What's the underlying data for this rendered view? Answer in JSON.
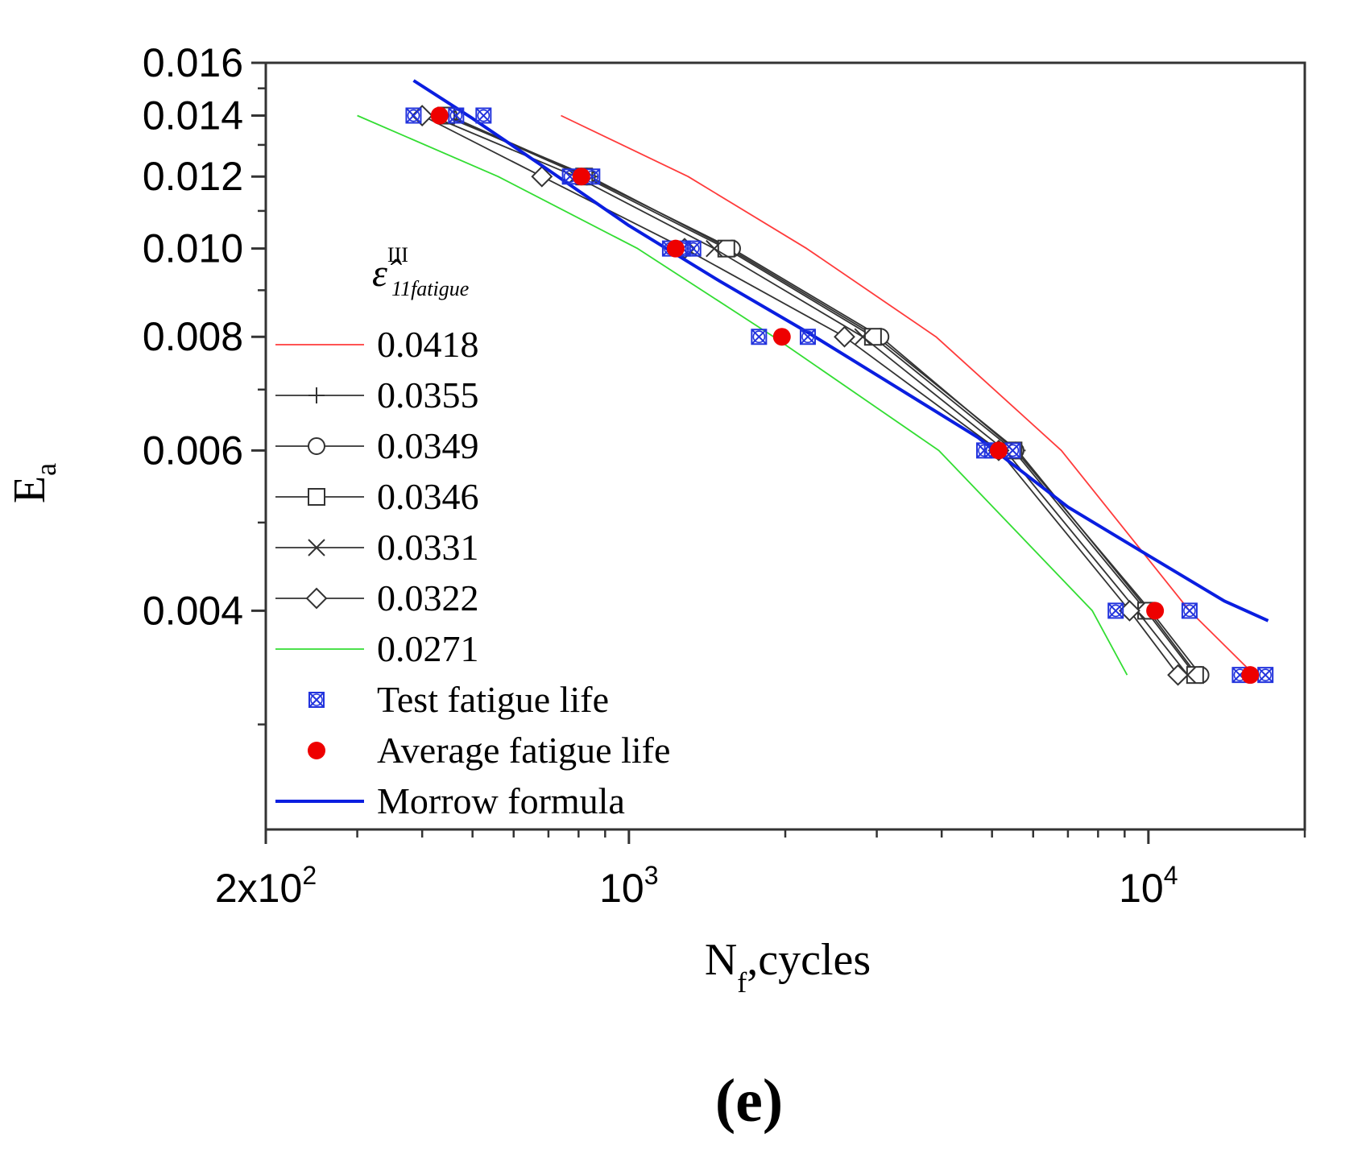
{
  "chart_data": {
    "type": "line",
    "title": "",
    "xlabel": "N",
    "xlabel_sub": "f",
    "xlabel_rest": ",cycles",
    "ylabel": "E",
    "ylabel_sub": "a",
    "x_scale": "log",
    "y_scale": "log",
    "xlim": [
      200,
      20000
    ],
    "ylim": [
      0.0023,
      0.016
    ],
    "x_ticks": [
      {
        "value": 200,
        "base": "2x10",
        "exp": "2"
      },
      {
        "value": 1000,
        "base": "10",
        "exp": "3"
      },
      {
        "value": 10000,
        "base": "10",
        "exp": "4"
      }
    ],
    "y_ticks": [
      {
        "value": 0.016,
        "label": "0.016"
      },
      {
        "value": 0.014,
        "label": "0.014"
      },
      {
        "value": 0.012,
        "label": "0.012"
      },
      {
        "value": 0.01,
        "label": "0.010"
      },
      {
        "value": 0.008,
        "label": "0.008"
      },
      {
        "value": 0.006,
        "label": "0.006"
      },
      {
        "value": 0.004,
        "label": "0.004"
      }
    ],
    "legend": {
      "placement": "left-middle",
      "header": {
        "base": "ε̂",
        "sup": "III",
        "sub": "11fatigue"
      }
    },
    "series": [
      {
        "name": "0.0418",
        "style": "line",
        "color": "#ff3b3b",
        "width": 1.8,
        "points": [
          [
            740,
            0.014
          ],
          [
            1300,
            0.012
          ],
          [
            2200,
            0.01
          ],
          [
            3900,
            0.008
          ],
          [
            6800,
            0.006
          ],
          [
            12000,
            0.004
          ],
          [
            16000,
            0.0034
          ]
        ]
      },
      {
        "name": "0.0355",
        "style": "line-marker",
        "marker": "plus",
        "color": "#333333",
        "width": 1.8,
        "points": [
          [
            440,
            0.014
          ],
          [
            840,
            0.012
          ],
          [
            1560,
            0.01
          ],
          [
            3000,
            0.008
          ],
          [
            5600,
            0.006
          ],
          [
            10000,
            0.004
          ],
          [
            12400,
            0.0034
          ]
        ]
      },
      {
        "name": "0.0349",
        "style": "line-marker",
        "marker": "circle",
        "color": "#333333",
        "width": 1.8,
        "points": [
          [
            450,
            0.014
          ],
          [
            830,
            0.012
          ],
          [
            1580,
            0.01
          ],
          [
            3050,
            0.008
          ],
          [
            5550,
            0.006
          ],
          [
            10100,
            0.004
          ],
          [
            12600,
            0.0034
          ]
        ]
      },
      {
        "name": "0.0346",
        "style": "line-marker",
        "marker": "square",
        "color": "#333333",
        "width": 1.8,
        "points": [
          [
            445,
            0.014
          ],
          [
            820,
            0.012
          ],
          [
            1540,
            0.01
          ],
          [
            2950,
            0.008
          ],
          [
            5500,
            0.006
          ],
          [
            9900,
            0.004
          ],
          [
            12300,
            0.0034
          ]
        ]
      },
      {
        "name": "0.0331",
        "style": "line-marker",
        "marker": "x",
        "color": "#333333",
        "width": 1.8,
        "points": [
          [
            415,
            0.014
          ],
          [
            790,
            0.012
          ],
          [
            1460,
            0.01
          ],
          [
            2820,
            0.008
          ],
          [
            5300,
            0.006
          ],
          [
            9500,
            0.004
          ],
          [
            11900,
            0.0034
          ]
        ]
      },
      {
        "name": "0.0322",
        "style": "line-marker",
        "marker": "diamond",
        "color": "#333333",
        "width": 1.8,
        "points": [
          [
            400,
            0.014
          ],
          [
            680,
            0.012
          ],
          [
            1280,
            0.01
          ],
          [
            2600,
            0.008
          ],
          [
            5150,
            0.006
          ],
          [
            9200,
            0.004
          ],
          [
            11400,
            0.0034
          ]
        ]
      },
      {
        "name": "0.0271",
        "style": "line",
        "color": "#33dd33",
        "width": 1.8,
        "points": [
          [
            300,
            0.014
          ],
          [
            560,
            0.012
          ],
          [
            1040,
            0.01
          ],
          [
            1900,
            0.008
          ],
          [
            3950,
            0.006
          ],
          [
            7800,
            0.004
          ],
          [
            9100,
            0.0034
          ]
        ]
      },
      {
        "name": "Test fatigue life",
        "style": "marker",
        "marker": "crossed-square",
        "color": "#2233dd",
        "points": [
          [
            385,
            0.014
          ],
          [
            465,
            0.014
          ],
          [
            525,
            0.014
          ],
          [
            770,
            0.012
          ],
          [
            850,
            0.012
          ],
          [
            1200,
            0.01
          ],
          [
            1270,
            0.01
          ],
          [
            1330,
            0.01
          ],
          [
            1780,
            0.008
          ],
          [
            2210,
            0.008
          ],
          [
            4830,
            0.006
          ],
          [
            5000,
            0.006
          ],
          [
            5480,
            0.006
          ],
          [
            8650,
            0.004
          ],
          [
            12000,
            0.004
          ],
          [
            15000,
            0.0034
          ],
          [
            16800,
            0.0034
          ]
        ]
      },
      {
        "name": "Average fatigue life",
        "style": "marker",
        "marker": "filled-circle",
        "color": "#ee0000",
        "points": [
          [
            432,
            0.014
          ],
          [
            810,
            0.012
          ],
          [
            1230,
            0.01
          ],
          [
            1970,
            0.008
          ],
          [
            5150,
            0.006
          ],
          [
            10300,
            0.004
          ],
          [
            15700,
            0.0034
          ]
        ]
      },
      {
        "name": "Morrow formula",
        "style": "line",
        "color": "#0a1ee0",
        "width": 4,
        "points": [
          [
            385,
            0.0153
          ],
          [
            500,
            0.0139
          ],
          [
            700,
            0.0122
          ],
          [
            1000,
            0.0106
          ],
          [
            1500,
            0.0092
          ],
          [
            2200,
            0.0081
          ],
          [
            3200,
            0.0071
          ],
          [
            4700,
            0.0062
          ],
          [
            7000,
            0.0052
          ],
          [
            10000,
            0.0046
          ],
          [
            14000,
            0.0041
          ],
          [
            17000,
            0.0039
          ]
        ]
      }
    ]
  },
  "caption": {
    "label": "(e)"
  }
}
